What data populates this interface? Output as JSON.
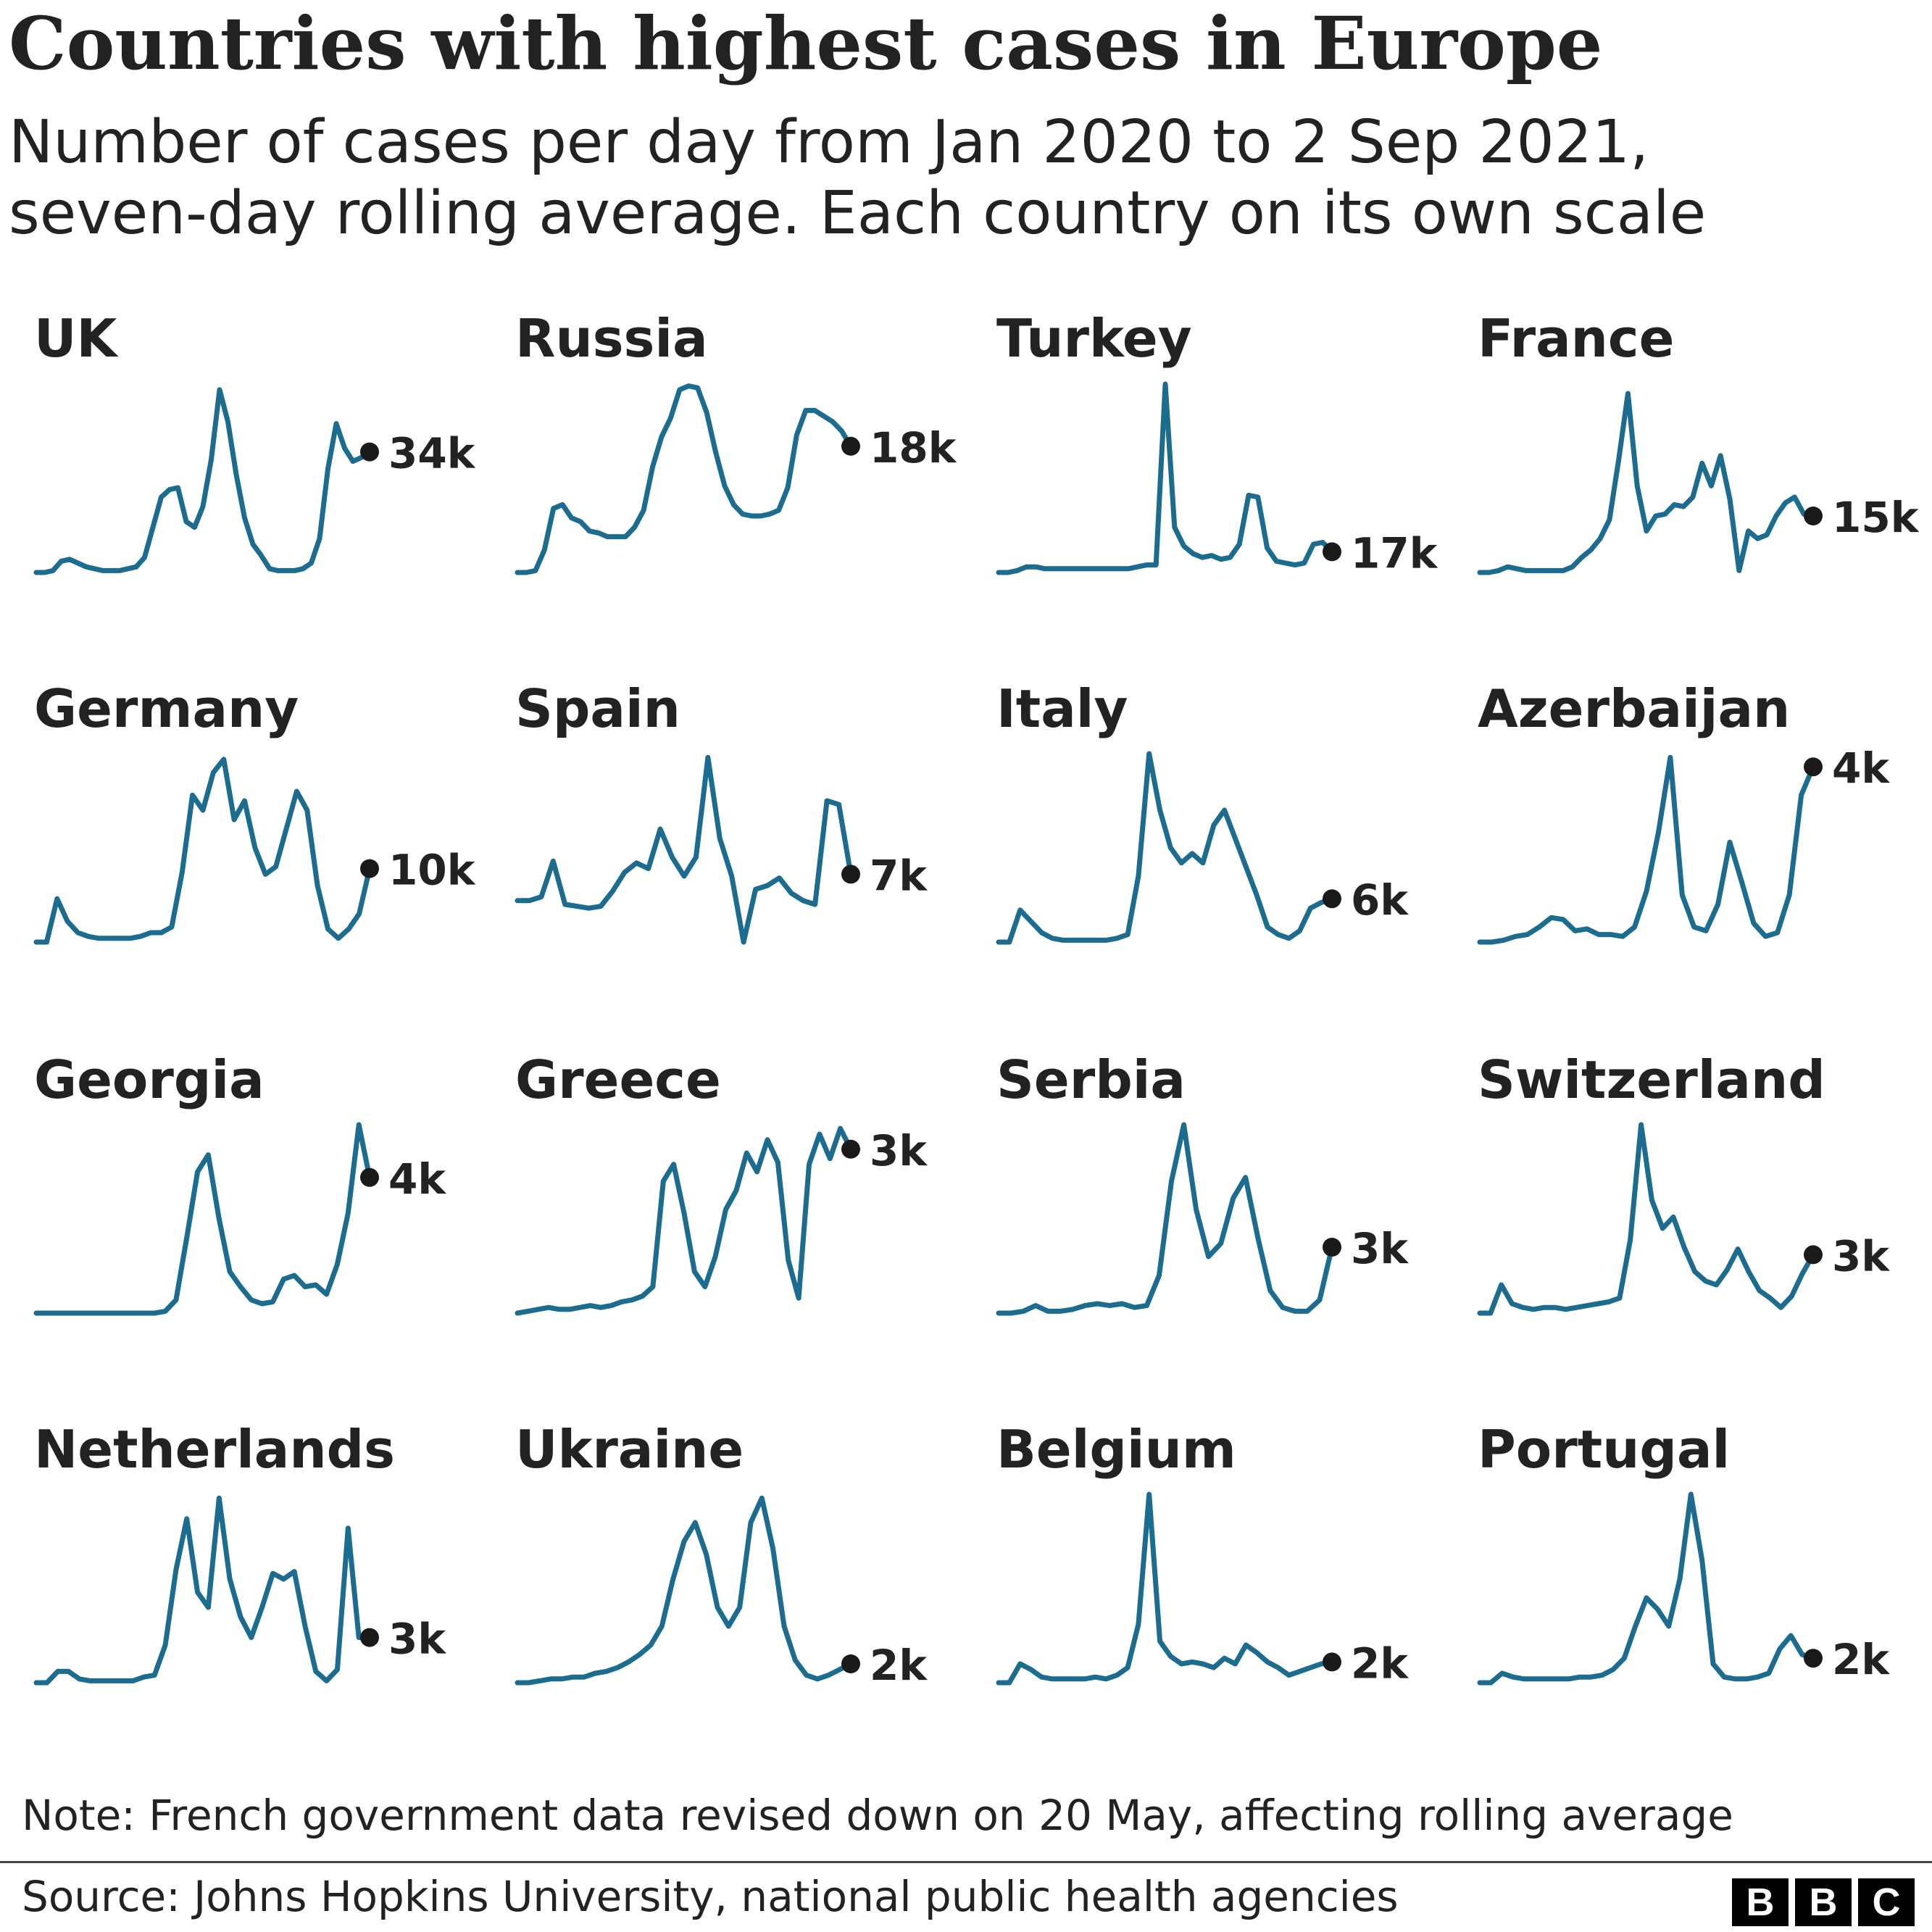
{
  "header": {
    "title": "Countries with highest cases in Europe",
    "subtitle_line1": "Number of cases per day from Jan 2020 to 2 Sep 2021,",
    "subtitle_line2": "seven-day rolling average. Each country on its own scale"
  },
  "colors": {
    "line": "#1b6c8f",
    "dot": "#1a1a1a",
    "text": "#222222"
  },
  "chart_data": {
    "type": "line",
    "title": "Countries with highest cases in Europe",
    "x_range": [
      "Jan 2020",
      "2 Sep 2021"
    ],
    "y_units": "relative (each country on its own scale, 0-100 of its own peak)",
    "series": [
      {
        "name": "UK",
        "latest_label": "34k",
        "values": [
          0,
          0,
          1,
          6,
          7,
          5,
          3,
          2,
          1,
          1,
          1,
          2,
          3,
          8,
          24,
          40,
          44,
          45,
          27,
          24,
          35,
          60,
          97,
          80,
          52,
          29,
          15,
          9,
          2,
          1,
          1,
          1,
          2,
          5,
          18,
          55,
          79,
          66,
          59,
          61,
          64
        ]
      },
      {
        "name": "Russia",
        "latest_label": "18k",
        "values": [
          0,
          0,
          1,
          12,
          34,
          36,
          29,
          27,
          22,
          21,
          19,
          19,
          19,
          24,
          33,
          56,
          72,
          82,
          97,
          99,
          98,
          85,
          64,
          46,
          36,
          31,
          30,
          30,
          31,
          33,
          45,
          73,
          86,
          86,
          83,
          80,
          75,
          67
        ]
      },
      {
        "name": "Turkey",
        "latest_label": "17k",
        "values": [
          0,
          0,
          1,
          3,
          3,
          2,
          2,
          2,
          2,
          2,
          2,
          2,
          2,
          2,
          2,
          3,
          4,
          4,
          100,
          24,
          14,
          10,
          8,
          9,
          7,
          8,
          15,
          41,
          40,
          13,
          6,
          5,
          4,
          5,
          15,
          16,
          11
        ]
      },
      {
        "name": "France",
        "latest_label": "15k",
        "values": [
          0,
          0,
          1,
          3,
          2,
          1,
          1,
          1,
          1,
          1,
          3,
          8,
          12,
          18,
          28,
          60,
          95,
          46,
          22,
          30,
          31,
          36,
          35,
          40,
          58,
          46,
          62,
          39,
          1,
          22,
          18,
          20,
          30,
          37,
          40,
          31,
          30
        ]
      },
      {
        "name": "Germany",
        "latest_label": "10k",
        "values": [
          0,
          0,
          23,
          11,
          5,
          3,
          2,
          2,
          2,
          2,
          3,
          5,
          5,
          8,
          37,
          78,
          70,
          90,
          97,
          65,
          75,
          50,
          36,
          40,
          60,
          80,
          70,
          30,
          7,
          2,
          7,
          15,
          39
        ]
      },
      {
        "name": "Spain",
        "latest_label": "7k",
        "values": [
          22,
          22,
          24,
          43,
          20,
          19,
          18,
          19,
          27,
          37,
          42,
          39,
          60,
          45,
          35,
          45,
          98,
          55,
          35,
          0,
          28,
          30,
          34,
          26,
          22,
          20,
          75,
          73,
          36
        ]
      },
      {
        "name": "Italy",
        "latest_label": "6k",
        "values": [
          0,
          0,
          17,
          11,
          5,
          2,
          1,
          1,
          1,
          1,
          1,
          2,
          4,
          35,
          100,
          70,
          50,
          42,
          47,
          42,
          62,
          70,
          55,
          40,
          25,
          8,
          4,
          2,
          6,
          18,
          21,
          23
        ]
      },
      {
        "name": "Azerbaijan",
        "latest_label": "4k",
        "values": [
          0,
          0,
          1,
          3,
          4,
          8,
          13,
          12,
          6,
          7,
          4,
          4,
          3,
          8,
          27,
          58,
          98,
          25,
          8,
          6,
          20,
          53,
          32,
          10,
          3,
          5,
          25,
          78,
          93
        ]
      },
      {
        "name": "Georgia",
        "latest_label": "4k",
        "values": [
          0,
          0,
          0,
          0,
          0,
          0,
          0,
          0,
          0,
          0,
          0,
          0,
          1,
          7,
          40,
          75,
          84,
          50,
          22,
          14,
          7,
          5,
          6,
          18,
          20,
          14,
          15,
          10,
          26,
          53,
          100,
          72
        ]
      },
      {
        "name": "Greece",
        "latest_label": "3k",
        "values": [
          0,
          1,
          2,
          3,
          2,
          2,
          3,
          4,
          3,
          4,
          6,
          7,
          9,
          14,
          70,
          79,
          53,
          22,
          14,
          30,
          55,
          65,
          85,
          75,
          92,
          80,
          28,
          8,
          79,
          95,
          82,
          98,
          87
        ]
      },
      {
        "name": "Serbia",
        "latest_label": "3k",
        "values": [
          0,
          0,
          1,
          4,
          1,
          1,
          2,
          4,
          5,
          4,
          5,
          3,
          4,
          20,
          70,
          100,
          55,
          30,
          37,
          61,
          72,
          40,
          12,
          3,
          1,
          1,
          7,
          35
        ]
      },
      {
        "name": "Switzerland",
        "latest_label": "3k",
        "values": [
          0,
          0,
          15,
          5,
          3,
          2,
          3,
          3,
          2,
          3,
          4,
          5,
          6,
          8,
          39,
          100,
          60,
          45,
          51,
          35,
          22,
          17,
          15,
          23,
          34,
          22,
          12,
          8,
          3,
          9,
          21,
          31
        ]
      },
      {
        "name": "Netherlands",
        "latest_label": "3k",
        "values": [
          0,
          0,
          6,
          6,
          2,
          1,
          1,
          1,
          1,
          1,
          3,
          4,
          20,
          60,
          87,
          48,
          40,
          98,
          55,
          35,
          24,
          40,
          58,
          55,
          59,
          30,
          6,
          1,
          7,
          82,
          24,
          24
        ]
      },
      {
        "name": "Ukraine",
        "latest_label": "2k",
        "values": [
          0,
          0,
          1,
          2,
          2,
          3,
          3,
          5,
          6,
          8,
          11,
          15,
          20,
          30,
          55,
          75,
          85,
          68,
          40,
          30,
          40,
          85,
          98,
          71,
          30,
          12,
          4,
          2,
          4,
          7,
          10
        ]
      },
      {
        "name": "Belgium",
        "latest_label": "2k",
        "values": [
          0,
          0,
          10,
          7,
          3,
          2,
          2,
          2,
          2,
          3,
          2,
          4,
          8,
          31,
          100,
          22,
          14,
          10,
          11,
          10,
          8,
          13,
          10,
          20,
          16,
          11,
          8,
          4,
          6,
          8,
          10,
          11
        ]
      },
      {
        "name": "Portugal",
        "latest_label": "2k",
        "values": [
          0,
          0,
          5,
          3,
          2,
          2,
          2,
          2,
          2,
          3,
          3,
          4,
          7,
          13,
          30,
          45,
          39,
          30,
          55,
          100,
          65,
          10,
          3,
          2,
          2,
          3,
          5,
          18,
          25,
          15,
          13
        ]
      }
    ]
  },
  "footer": {
    "note": "Note: French government data revised down on 20 May, affecting rolling average",
    "source": "Source: Johns Hopkins University, national public health agencies",
    "logo_letters": [
      "B",
      "B",
      "C"
    ]
  }
}
